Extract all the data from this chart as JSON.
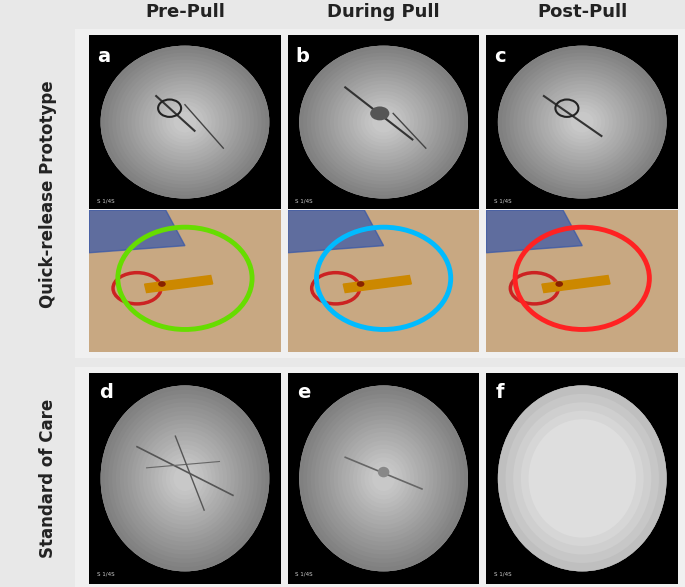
{
  "bg_color": "#e8e8e8",
  "panel_bg": "#f0f0f0",
  "title_row1": "Pre-Pull",
  "title_row2": "During Pull",
  "title_row3": "Post-Pull",
  "row_label1": "Quick-release Prototype",
  "row_label2": "Standard of Care",
  "panel_labels": [
    "a",
    "b",
    "c",
    "d",
    "e",
    "f"
  ],
  "circle_colors": [
    "#66dd00",
    "#00bbff",
    "#ff2222"
  ],
  "title_fontsize": 13,
  "label_fontsize": 12,
  "panel_label_fontsize": 14,
  "fig_width": 6.85,
  "fig_height": 5.87
}
